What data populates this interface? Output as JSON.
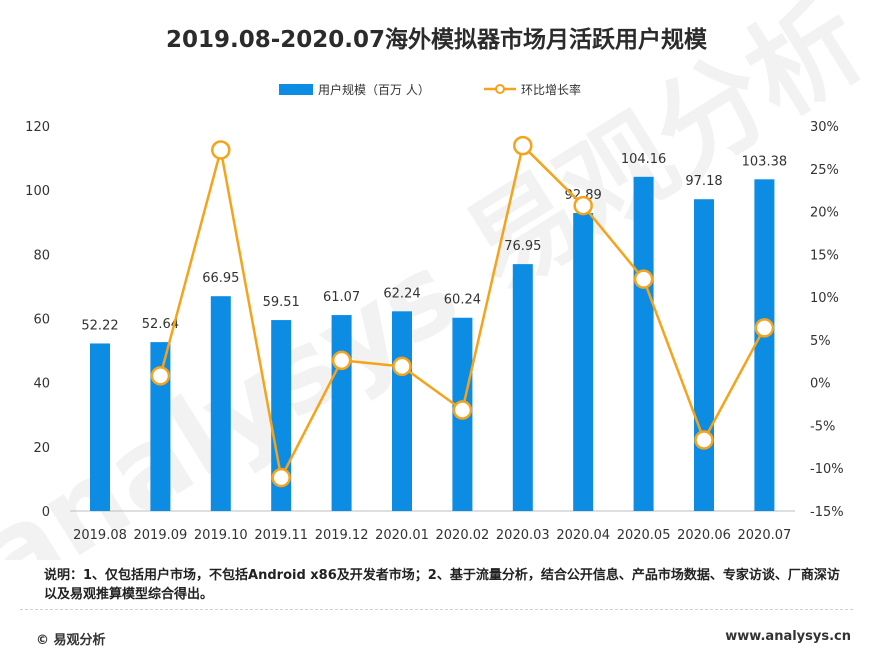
{
  "title": "2019.08-2020.07海外模拟器市场月活跃用户规模",
  "note": "说明：1、仅包括用户市场，不包括Android x86及开发者市场；2、基于流量分析，结合公开信息、产品市场数据、专家访谈、厂商深访以及易观推算模型综合得出。",
  "footer": {
    "copyright": "© 易观分析",
    "website": "www.analysys.cn"
  },
  "watermark": "analysys 易观分析",
  "colors": {
    "bar": "#0d8ce3",
    "line": "#f5a31a",
    "marker_fill": "#ffffff"
  },
  "chart_data": {
    "type": "bar",
    "categories": [
      "2019.08",
      "2019.09",
      "2019.10",
      "2019.11",
      "2019.12",
      "2020.01",
      "2020.02",
      "2020.03",
      "2020.04",
      "2020.05",
      "2020.06",
      "2020.07"
    ],
    "series": [
      {
        "name": "用户规模（百万 人）",
        "type": "bar",
        "axis": "left",
        "values": [
          52.22,
          52.64,
          66.95,
          59.51,
          61.07,
          62.24,
          60.24,
          76.95,
          92.89,
          104.16,
          97.18,
          103.38
        ],
        "labels": [
          "52.22",
          "52.64",
          "66.95",
          "59.51",
          "61.07",
          "62.24",
          "60.24",
          "76.95",
          "92.89",
          "104.16",
          "97.18",
          "103.38"
        ]
      },
      {
        "name": "环比增长率",
        "type": "line",
        "axis": "right",
        "values": [
          null,
          0.8,
          27.2,
          -11.1,
          2.6,
          1.9,
          -3.2,
          27.7,
          20.7,
          12.1,
          -6.7,
          6.4
        ]
      }
    ],
    "left_axis": {
      "ylim": [
        0,
        120
      ],
      "ticks": [
        "0",
        "20",
        "40",
        "60",
        "80",
        "100",
        "120"
      ]
    },
    "right_axis": {
      "ylim": [
        -15,
        30
      ],
      "ticks": [
        "-15%",
        "-10%",
        "-5%",
        "0%",
        "5%",
        "10%",
        "15%",
        "20%",
        "25%",
        "30%"
      ]
    },
    "legend_position": "top",
    "grid": false
  }
}
